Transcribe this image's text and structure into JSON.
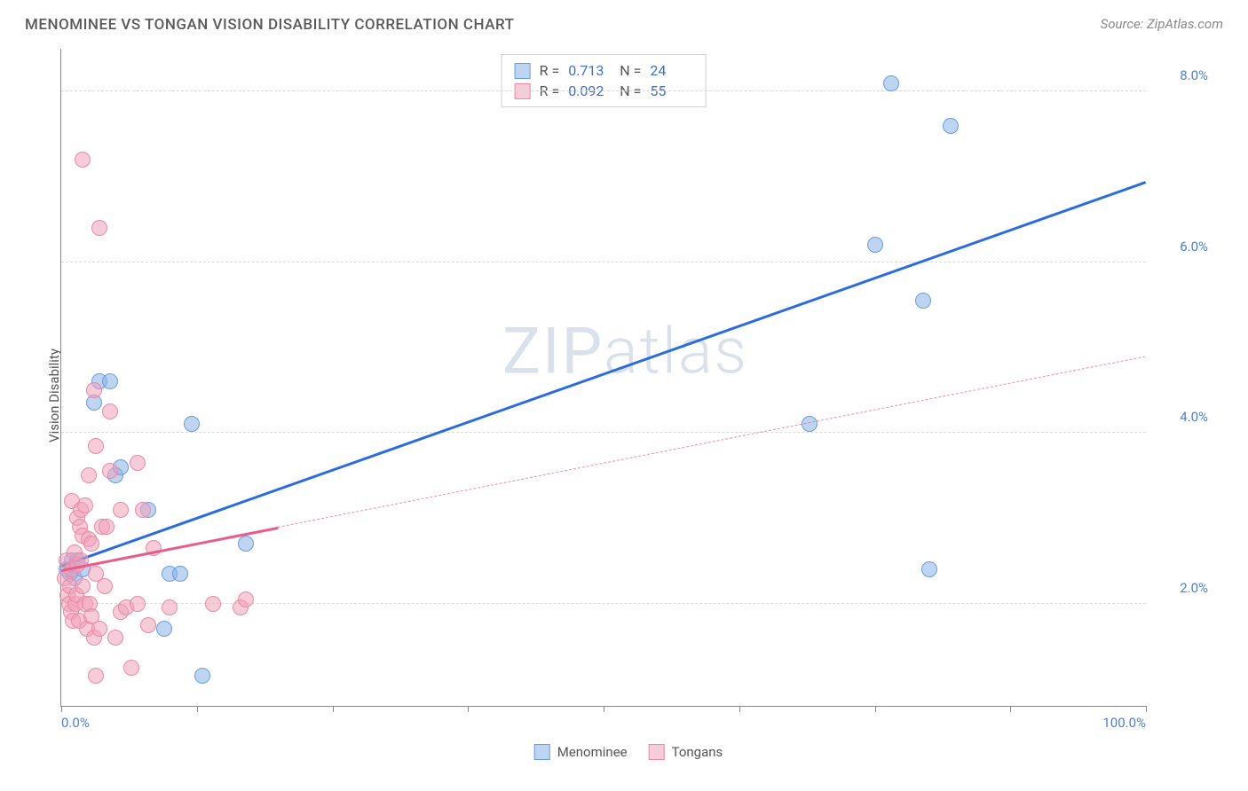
{
  "title": "MENOMINEE VS TONGAN VISION DISABILITY CORRELATION CHART",
  "source": "Source: ZipAtlas.com",
  "y_axis_label": "Vision Disability",
  "watermark": {
    "part1": "ZIP",
    "part2": "atlas"
  },
  "chart": {
    "type": "scatter",
    "xlim": [
      0,
      100
    ],
    "ylim": [
      0.8,
      8.5
    ],
    "x_ticks": [
      0,
      12.5,
      25,
      37.5,
      50,
      62.5,
      75,
      87.5,
      100
    ],
    "x_labels": {
      "0": "0.0%",
      "100": "100.0%"
    },
    "y_gridlines": [
      2.0,
      4.0,
      6.0,
      8.0
    ],
    "y_labels": {
      "2.0": "2.0%",
      "4.0": "4.0%",
      "6.0": "6.0%",
      "8.0": "8.0%"
    },
    "background_color": "#ffffff",
    "grid_color": "#d9d9d9",
    "axis_color": "#888888",
    "tick_label_color": "#4a7fd8",
    "marker_radius": 9
  },
  "series": [
    {
      "name": "Menominee",
      "fill": "rgba(137,178,231,0.55)",
      "stroke": "#6a9de0",
      "trend_color": "#2b6be0",
      "trend": {
        "x1": 0,
        "y1": 2.45,
        "x2": 100,
        "y2": 6.95,
        "solid_until_x": 100
      },
      "points": [
        [
          0.5,
          2.4
        ],
        [
          0.8,
          2.35
        ],
        [
          1.0,
          2.5
        ],
        [
          1.2,
          2.3
        ],
        [
          1.5,
          2.5
        ],
        [
          2.0,
          2.4
        ],
        [
          3.0,
          4.35
        ],
        [
          3.5,
          4.6
        ],
        [
          4.5,
          4.6
        ],
        [
          5.0,
          3.5
        ],
        [
          5.5,
          3.6
        ],
        [
          8.0,
          3.1
        ],
        [
          9.5,
          1.7
        ],
        [
          10.0,
          2.35
        ],
        [
          11.0,
          2.35
        ],
        [
          12.0,
          4.1
        ],
        [
          13.0,
          1.15
        ],
        [
          17.0,
          2.7
        ],
        [
          69.0,
          4.1
        ],
        [
          75.0,
          6.2
        ],
        [
          76.5,
          8.1
        ],
        [
          79.5,
          5.55
        ],
        [
          80.0,
          2.4
        ],
        [
          82.0,
          7.6
        ]
      ]
    },
    {
      "name": "Tongans",
      "fill": "rgba(242,160,185,0.55)",
      "stroke": "#e88aa8",
      "trend_color": "#e85c8a",
      "trend": {
        "x1": 0,
        "y1": 2.4,
        "x2": 100,
        "y2": 4.9,
        "solid_until_x": 20
      },
      "points": [
        [
          0.3,
          2.3
        ],
        [
          0.5,
          2.5
        ],
        [
          0.6,
          2.1
        ],
        [
          0.7,
          2.0
        ],
        [
          0.8,
          2.2
        ],
        [
          0.9,
          1.9
        ],
        [
          1.0,
          2.4
        ],
        [
          1.0,
          3.2
        ],
        [
          1.1,
          1.8
        ],
        [
          1.2,
          2.6
        ],
        [
          1.3,
          2.0
        ],
        [
          1.4,
          2.1
        ],
        [
          1.5,
          2.45
        ],
        [
          1.5,
          3.0
        ],
        [
          1.6,
          1.8
        ],
        [
          1.7,
          2.9
        ],
        [
          1.8,
          2.5
        ],
        [
          1.8,
          3.1
        ],
        [
          2.0,
          2.2
        ],
        [
          2.0,
          2.8
        ],
        [
          2.0,
          7.2
        ],
        [
          2.2,
          2.0
        ],
        [
          2.2,
          3.15
        ],
        [
          2.4,
          1.7
        ],
        [
          2.5,
          2.75
        ],
        [
          2.5,
          3.5
        ],
        [
          2.6,
          2.0
        ],
        [
          2.8,
          1.85
        ],
        [
          2.8,
          2.7
        ],
        [
          3.0,
          1.6
        ],
        [
          3.0,
          4.5
        ],
        [
          3.2,
          1.15
        ],
        [
          3.2,
          2.35
        ],
        [
          3.2,
          3.85
        ],
        [
          3.5,
          1.7
        ],
        [
          3.5,
          6.4
        ],
        [
          3.8,
          2.9
        ],
        [
          4.0,
          2.2
        ],
        [
          4.2,
          2.9
        ],
        [
          4.5,
          3.55
        ],
        [
          4.5,
          4.25
        ],
        [
          5.0,
          1.6
        ],
        [
          5.5,
          1.9
        ],
        [
          5.5,
          3.1
        ],
        [
          6.0,
          1.95
        ],
        [
          6.5,
          1.25
        ],
        [
          7.0,
          2.0
        ],
        [
          7.0,
          3.65
        ],
        [
          7.5,
          3.1
        ],
        [
          8.0,
          1.75
        ],
        [
          8.5,
          2.65
        ],
        [
          10.0,
          1.95
        ],
        [
          14.0,
          2.0
        ],
        [
          16.5,
          1.95
        ],
        [
          17.0,
          2.05
        ]
      ]
    }
  ],
  "stats": [
    {
      "series": 0,
      "R": "0.713",
      "N": "24"
    },
    {
      "series": 1,
      "R": "0.092",
      "N": "55"
    }
  ],
  "legend": [
    {
      "label": "Menominee",
      "fill": "rgba(137,178,231,0.55)",
      "stroke": "#6a9de0"
    },
    {
      "label": "Tongans",
      "fill": "rgba(242,160,185,0.55)",
      "stroke": "#e88aa8"
    }
  ]
}
